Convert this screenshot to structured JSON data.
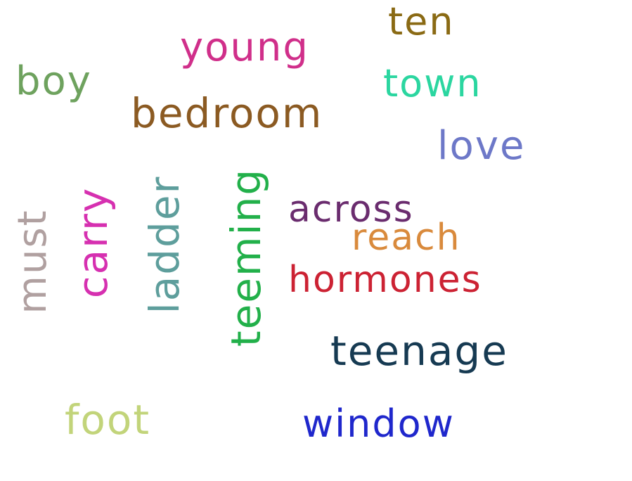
{
  "canvas": {
    "background": "#ffffff"
  },
  "words": [
    {
      "id": "young",
      "text": "young",
      "color": "#d02f8a",
      "orientation": "horizontal"
    },
    {
      "id": "ten",
      "text": "ten",
      "color": "#8a6a14",
      "orientation": "horizontal"
    },
    {
      "id": "boy",
      "text": "boy",
      "color": "#6ea25e",
      "orientation": "horizontal"
    },
    {
      "id": "town",
      "text": "town",
      "color": "#2bd6a0",
      "orientation": "horizontal"
    },
    {
      "id": "bedroom",
      "text": "bedroom",
      "color": "#8b5a22",
      "orientation": "horizontal"
    },
    {
      "id": "love",
      "text": "love",
      "color": "#6d78c8",
      "orientation": "horizontal"
    },
    {
      "id": "across",
      "text": "across",
      "color": "#6a2c6e",
      "orientation": "horizontal"
    },
    {
      "id": "reach",
      "text": "reach",
      "color": "#d98a3c",
      "orientation": "horizontal"
    },
    {
      "id": "hormones",
      "text": "hormones",
      "color": "#cc2233",
      "orientation": "horizontal"
    },
    {
      "id": "teenage",
      "text": "teenage",
      "color": "#163a52",
      "orientation": "horizontal"
    },
    {
      "id": "foot",
      "text": "foot",
      "color": "#c2d47a",
      "orientation": "horizontal"
    },
    {
      "id": "window",
      "text": "window",
      "color": "#1f27cc",
      "orientation": "horizontal"
    },
    {
      "id": "must",
      "text": "must",
      "color": "#b0a0a0",
      "orientation": "vertical"
    },
    {
      "id": "carry",
      "text": "carry",
      "color": "#d630b0",
      "orientation": "vertical"
    },
    {
      "id": "ladder",
      "text": "ladder",
      "color": "#5e9e9c",
      "orientation": "vertical"
    },
    {
      "id": "teeming",
      "text": "teeming",
      "color": "#22b04a",
      "orientation": "vertical"
    }
  ]
}
